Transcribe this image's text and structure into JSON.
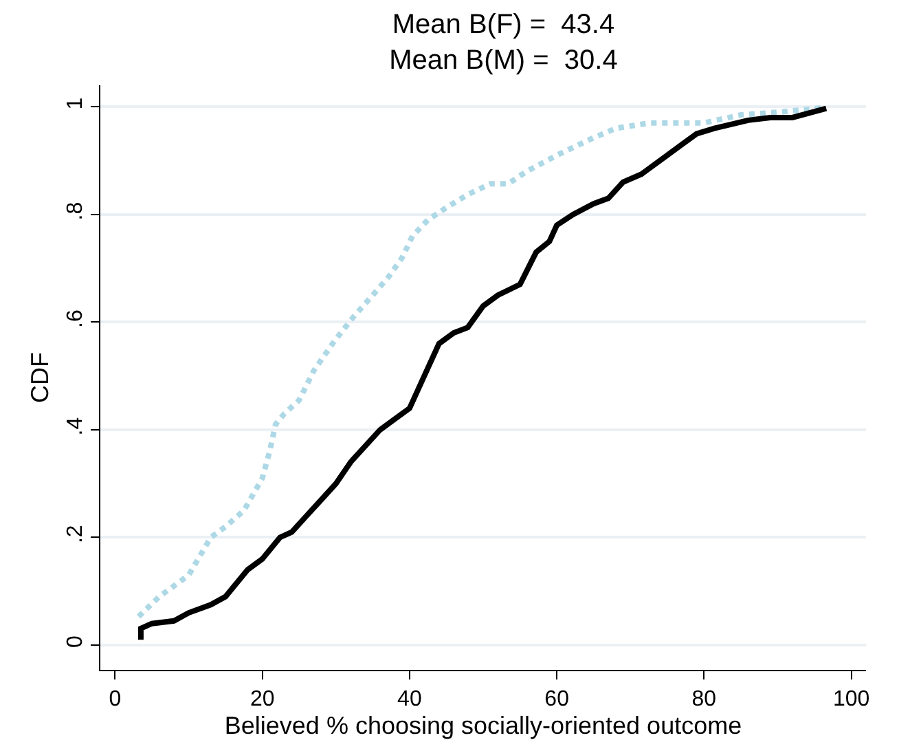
{
  "chart_data": {
    "type": "line",
    "title": "Mean B(F) =  43.4\nMean B(M) =  30.4",
    "xlabel": "Believed % choosing socially-oriented outcome",
    "ylabel": "CDF",
    "xlim": [
      -2,
      102
    ],
    "xticks": [
      0,
      20,
      40,
      60,
      80,
      100
    ],
    "ylim": [
      -0.046,
      1.04
    ],
    "yticks": [
      0,
      {
        "value": 0.2,
        "label": ".2"
      },
      {
        "value": 0.4,
        "label": ".4"
      },
      {
        "value": 0.6,
        "label": ".6"
      },
      {
        "value": 0.8,
        "label": ".8"
      },
      1
    ],
    "grid": "y",
    "series": [
      {
        "color": "#add8e6",
        "line_style": "dotted",
        "x": [
          3.2,
          6,
          10,
          13,
          15,
          17.5,
          20,
          21,
          21.8,
          23,
          25,
          27,
          29.8,
          32.4,
          35,
          37.2,
          39,
          40.4,
          42.5,
          44.7,
          47.9,
          51,
          53.4,
          55.9,
          60,
          64.6,
          68,
          72.6,
          80,
          85,
          90,
          96
        ],
        "values": [
          0.053,
          0.09,
          0.13,
          0.2,
          0.22,
          0.25,
          0.31,
          0.36,
          0.41,
          0.43,
          0.455,
          0.51,
          0.565,
          0.61,
          0.65,
          0.685,
          0.72,
          0.76,
          0.79,
          0.81,
          0.837,
          0.857,
          0.857,
          0.88,
          0.91,
          0.94,
          0.96,
          0.97,
          0.97,
          0.985,
          0.99,
          0.998
        ]
      },
      {
        "color": "#000000",
        "line_style": "solid",
        "x": [
          3.5,
          3.5,
          5,
          8,
          10,
          13,
          15,
          18,
          20,
          22.4,
          24,
          26,
          28,
          30,
          32,
          34,
          36,
          38,
          40,
          41,
          42,
          44,
          46,
          47.9,
          50,
          52,
          55,
          57.2,
          59,
          60,
          62.2,
          65,
          67,
          69,
          71.5,
          75,
          77,
          79,
          81.4,
          86,
          89,
          92,
          96.6
        ],
        "values": [
          0.01,
          0.031,
          0.04,
          0.045,
          0.06,
          0.075,
          0.09,
          0.14,
          0.16,
          0.2,
          0.21,
          0.24,
          0.27,
          0.3,
          0.34,
          0.37,
          0.4,
          0.42,
          0.44,
          0.47,
          0.5,
          0.56,
          0.58,
          0.59,
          0.63,
          0.65,
          0.67,
          0.73,
          0.75,
          0.78,
          0.8,
          0.82,
          0.83,
          0.86,
          0.875,
          0.91,
          0.93,
          0.95,
          0.96,
          0.975,
          0.98,
          0.98,
          0.997
        ]
      }
    ]
  }
}
